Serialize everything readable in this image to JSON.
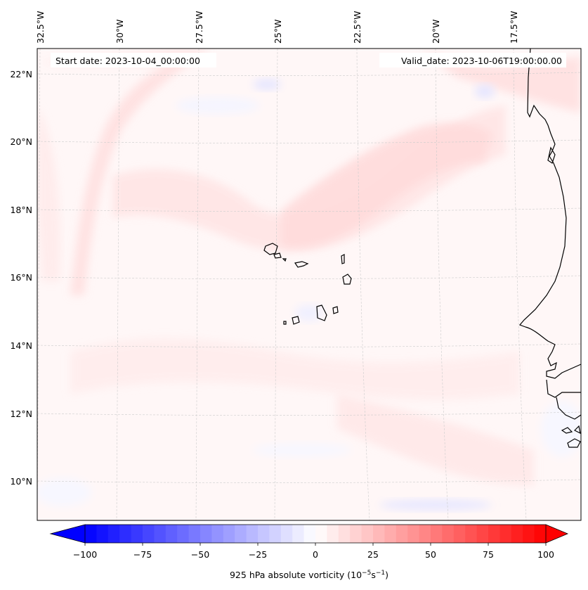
{
  "chart_data": {
    "type": "heatmap",
    "title": "",
    "variable": "925 hPa absolute vorticity",
    "units_label": {
      "base": "925 hPa absolute vorticity (10",
      "exp1": "−5",
      "mid": "s",
      "exp2": "−1",
      "end": ")"
    },
    "annotations": {
      "start_date": "Start date: 2023-10-04_00:00:00",
      "valid_date": "Valid_date: 2023-10-06T19:00:00.00"
    },
    "map_extent": {
      "lon_min": -33.0,
      "lon_max": -15.0,
      "lat_min": 8.9,
      "lat_max": 22.7
    },
    "lon_ticks": [
      {
        "value": -32.5,
        "label": "32.5°W"
      },
      {
        "value": -30.0,
        "label": "30°W"
      },
      {
        "value": -27.5,
        "label": "27.5°W"
      },
      {
        "value": -25.0,
        "label": "25°W"
      },
      {
        "value": -22.5,
        "label": "22.5°W"
      },
      {
        "value": -20.0,
        "label": "20°W"
      },
      {
        "value": -17.5,
        "label": "17.5°W"
      }
    ],
    "lat_ticks": [
      {
        "value": 22,
        "label": "22°N"
      },
      {
        "value": 20,
        "label": "20°N"
      },
      {
        "value": 18,
        "label": "18°N"
      },
      {
        "value": 16,
        "label": "16°N"
      },
      {
        "value": 14,
        "label": "14°N"
      },
      {
        "value": 12,
        "label": "12°N"
      },
      {
        "value": 10,
        "label": "10°N"
      }
    ],
    "gridlines": true,
    "colorbar": {
      "orientation": "horizontal",
      "placement": "bottom",
      "cmap": "bwr",
      "vmin": -100,
      "vmax": 100,
      "step": 5,
      "extend": "both",
      "ticks": [
        {
          "value": -100,
          "label": "−100"
        },
        {
          "value": -75,
          "label": "−75"
        },
        {
          "value": -50,
          "label": "−50"
        },
        {
          "value": -25,
          "label": "−25"
        },
        {
          "value": 0,
          "label": "0"
        },
        {
          "value": 25,
          "label": "25"
        },
        {
          "value": 50,
          "label": "50"
        },
        {
          "value": 75,
          "label": "75"
        },
        {
          "value": 100,
          "label": "100"
        }
      ]
    },
    "field_features": [
      {
        "name": "arc-band-northwest",
        "value": 10,
        "desc": "curved positive vorticity band from NW corner sweeping south along 31–30°W"
      },
      {
        "name": "band-cape-verde",
        "value": 10,
        "desc": "broad positive band through Cape Verde islands toward NE"
      },
      {
        "name": "southern-band",
        "value": 8,
        "desc": "positive east-west band near 12–13°N"
      },
      {
        "name": "blue-patch-south",
        "value": -8,
        "desc": "weak negative near 9.3°N, 21°W"
      },
      {
        "name": "blue-patch-north",
        "value": -8,
        "desc": "weak negative near 21.5°N, 20.5°W"
      }
    ],
    "islands": [
      "Santo Antão",
      "São Vicente",
      "São Nicolau",
      "Sal",
      "Boa Vista",
      "Fogo",
      "Santiago",
      "Maio",
      "Brava"
    ]
  }
}
